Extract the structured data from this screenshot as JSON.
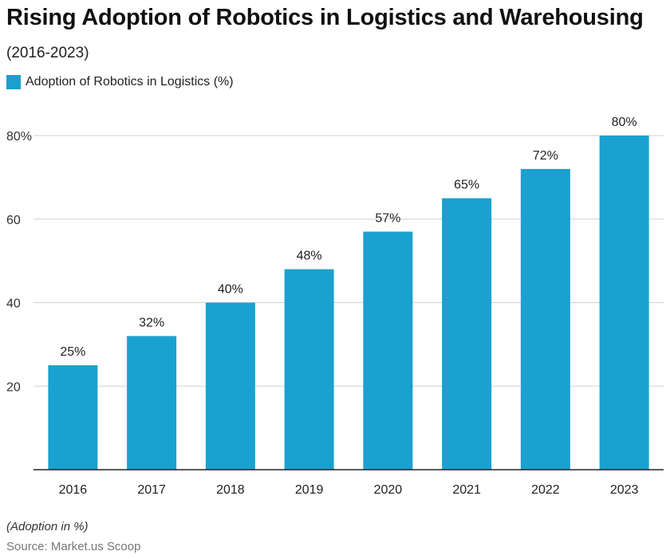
{
  "title": "Rising Adoption of Robotics in Logistics and Warehousing",
  "subtitle": "(2016-2023)",
  "legend": {
    "label": "Adoption of Robotics in Logistics (%)"
  },
  "footnote": "(Adoption in %)",
  "source": "Source: Market.us Scoop",
  "colors": {
    "bar": "#1aa1cf",
    "grid": "#d0d0d0",
    "axis": "#222222"
  },
  "chart_data": {
    "type": "bar",
    "categories": [
      "2016",
      "2017",
      "2018",
      "2019",
      "2020",
      "2021",
      "2022",
      "2023"
    ],
    "series": [
      {
        "name": "Adoption of Robotics in Logistics (%)",
        "values": [
          25,
          32,
          40,
          48,
          57,
          65,
          72,
          80
        ],
        "labels": [
          "25%",
          "32%",
          "40%",
          "48%",
          "57%",
          "65%",
          "72%",
          "80%"
        ]
      }
    ],
    "ylim": [
      0,
      80
    ],
    "yticks": [
      20,
      40,
      60,
      80
    ],
    "ytick_labels": [
      "20",
      "40",
      "60",
      "80%"
    ],
    "grid": true,
    "legend_position": "top-left"
  }
}
